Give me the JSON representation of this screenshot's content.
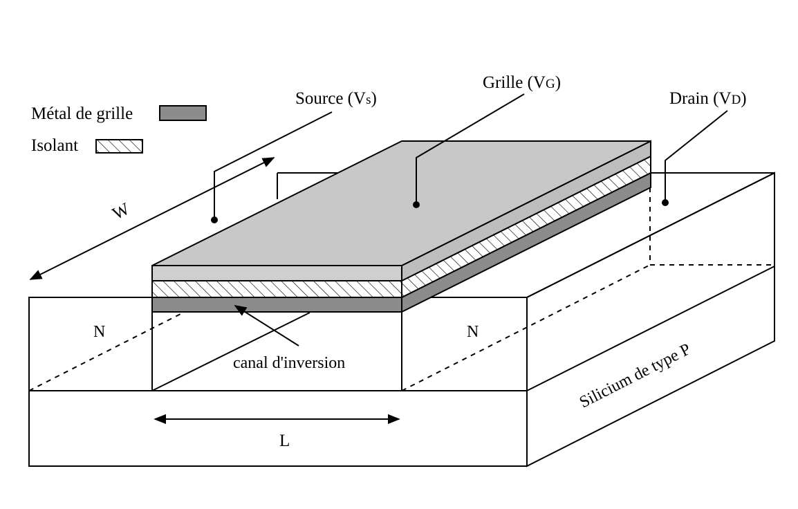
{
  "legend": {
    "metal_label": "Métal de grille",
    "insulator_label": "Isolant"
  },
  "terminals": {
    "source_main": "Source (V",
    "source_sub": "s",
    "source_close": ")",
    "gate_main": "Grille (V",
    "gate_sub": "G",
    "gate_close": ")",
    "drain_main": "Drain (V",
    "drain_sub": "D",
    "drain_close": ")"
  },
  "regions": {
    "source_region": "N",
    "drain_region": "N",
    "substrate": "Silicium de type P",
    "channel": "canal d'inversion"
  },
  "dimensions": {
    "width": "W",
    "length": "L"
  },
  "colors": {
    "gate_top": "#c8c8c8",
    "gate_front": "#cfcfcf",
    "metal": "#8c8c8c",
    "outline": "#000000",
    "background": "#ffffff"
  }
}
